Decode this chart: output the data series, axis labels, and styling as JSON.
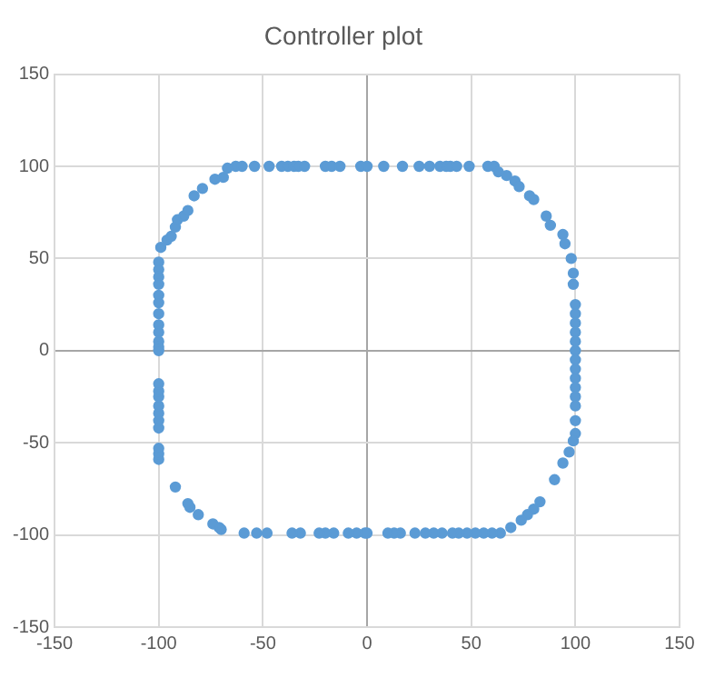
{
  "chart_data": {
    "type": "scatter",
    "title": "Controller plot",
    "xlim": [
      -150,
      150
    ],
    "ylim": [
      -150,
      150
    ],
    "xticks": [
      -150,
      -100,
      -50,
      0,
      50,
      100,
      150
    ],
    "yticks": [
      -150,
      -100,
      -50,
      0,
      50,
      100,
      150
    ],
    "grid": true,
    "legend": false,
    "marker": "circle",
    "series": [
      {
        "color": "#5b9bd5",
        "x": [
          -100,
          -100,
          -100,
          -100,
          -100,
          -100,
          -100,
          -100,
          -100,
          -100,
          -100,
          -100,
          -99,
          -96,
          -94,
          -92,
          -91,
          -88,
          -86,
          -83,
          -79,
          -73,
          -69,
          -67,
          -63,
          -60,
          -54,
          -47,
          -41,
          -38,
          -35,
          -33,
          -30,
          -20,
          -17,
          -13,
          -3,
          0,
          8,
          17,
          25,
          30,
          35,
          38,
          40,
          43,
          49,
          58,
          61,
          63,
          67,
          71,
          73,
          78,
          80,
          86,
          88,
          94,
          95,
          98,
          99,
          99,
          100,
          100,
          100,
          100,
          100,
          100,
          100,
          100,
          100,
          100,
          100,
          100,
          100,
          100,
          99,
          97,
          94,
          90,
          83,
          80,
          77,
          74,
          69,
          64,
          60,
          56,
          52,
          48,
          44,
          41,
          36,
          32,
          28,
          23,
          16,
          13,
          10,
          0,
          -1,
          -5,
          -9,
          -16,
          -20,
          -23,
          -32,
          -36,
          -48,
          -53,
          -59,
          -70,
          -71,
          -74,
          -81,
          -85,
          -86,
          -92,
          -100,
          -100,
          -100,
          -100,
          -100,
          -100,
          -100,
          -100,
          -100,
          -100
        ],
        "values": [
          48,
          44,
          40,
          36,
          30,
          26,
          20,
          14,
          10,
          5,
          2,
          0,
          56,
          60,
          62,
          67,
          71,
          73,
          76,
          84,
          88,
          93,
          94,
          99,
          100,
          100,
          100,
          100,
          100,
          100,
          100,
          100,
          100,
          100,
          100,
          100,
          100,
          100,
          100,
          100,
          100,
          100,
          100,
          100,
          100,
          100,
          100,
          100,
          100,
          97,
          95,
          92,
          89,
          84,
          82,
          73,
          68,
          63,
          58,
          50,
          42,
          36,
          25,
          20,
          15,
          10,
          5,
          0,
          -5,
          -10,
          -15,
          -20,
          -25,
          -30,
          -38,
          -45,
          -49,
          -55,
          -61,
          -70,
          -82,
          -86,
          -89,
          -92,
          -96,
          -99,
          -99,
          -99,
          -99,
          -99,
          -99,
          -99,
          -99,
          -99,
          -99,
          -99,
          -99,
          -99,
          -99,
          -99,
          -99,
          -99,
          -99,
          -99,
          -99,
          -99,
          -99,
          -99,
          -99,
          -99,
          -99,
          -97,
          -96,
          -94,
          -89,
          -85,
          -83,
          -74,
          -59,
          -56,
          -53,
          -42,
          -38,
          -34,
          -30,
          -25,
          -22,
          -18
        ]
      }
    ]
  }
}
